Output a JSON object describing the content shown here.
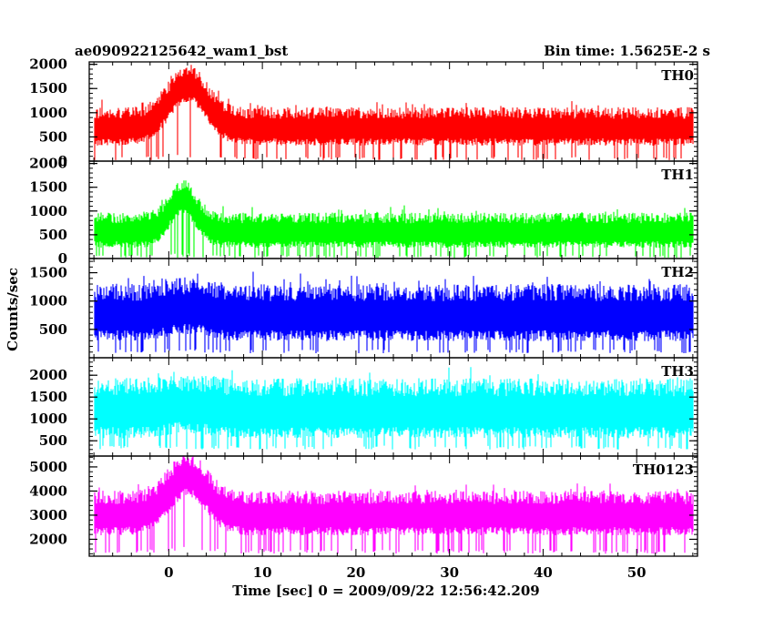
{
  "header": {
    "title": "ae090922125642_wam1_bst",
    "bin_time": "Bin time: 1.5625E-2 s"
  },
  "chart_data": {
    "type": "line",
    "xlabel": "Time [sec] 0 = 2009/09/22 12:56:42.209",
    "ylabel": "Counts/sec",
    "xlim": [
      -8.5,
      56.5
    ],
    "x_ticks": [
      0,
      10,
      20,
      30,
      40,
      50
    ],
    "grid": false,
    "panels": [
      {
        "name": "TH0",
        "color": "#ff0000",
        "ylim": [
          0,
          2050
        ],
        "ticks": [
          0,
          500,
          1000,
          1500,
          2000
        ],
        "x_range": [
          -7.9,
          56.0
        ],
        "baseline": 680,
        "noise": 300,
        "low_floor": 20,
        "burst": {
          "peak_x": 2.0,
          "amp": 900,
          "width": 2.8
        }
      },
      {
        "name": "TH1",
        "color": "#00ff00",
        "ylim": [
          0,
          2050
        ],
        "ticks": [
          0,
          500,
          1000,
          1500,
          2000
        ],
        "x_range": [
          -7.9,
          56.0
        ],
        "baseline": 560,
        "noise": 280,
        "low_floor": 10,
        "burst": {
          "peak_x": 1.5,
          "amp": 700,
          "width": 2.0
        }
      },
      {
        "name": "TH2",
        "color": "#0000ff",
        "ylim": [
          0,
          1750
        ],
        "ticks": [
          500,
          1000,
          1500
        ],
        "x_range": [
          -7.9,
          56.0
        ],
        "baseline": 750,
        "noise": 380,
        "low_floor": 80,
        "burst": {
          "peak_x": 2.0,
          "amp": 120,
          "width": 3.0
        }
      },
      {
        "name": "TH3",
        "color": "#00ffff",
        "ylim": [
          150,
          2400
        ],
        "ticks": [
          500,
          1000,
          1500,
          2000
        ],
        "x_range": [
          -7.9,
          56.0
        ],
        "baseline": 1180,
        "noise": 520,
        "low_floor": 300,
        "burst": {
          "peak_x": 2.0,
          "amp": 120,
          "width": 3.0
        }
      },
      {
        "name": "TH0123",
        "color": "#ff00ff",
        "ylim": [
          1300,
          5450
        ],
        "ticks": [
          2000,
          3000,
          4000,
          5000
        ],
        "x_range": [
          -7.9,
          56.0
        ],
        "baseline": 3000,
        "noise": 700,
        "low_floor": 1400,
        "burst": {
          "peak_x": 2.0,
          "amp": 1600,
          "width": 2.8
        }
      }
    ]
  }
}
